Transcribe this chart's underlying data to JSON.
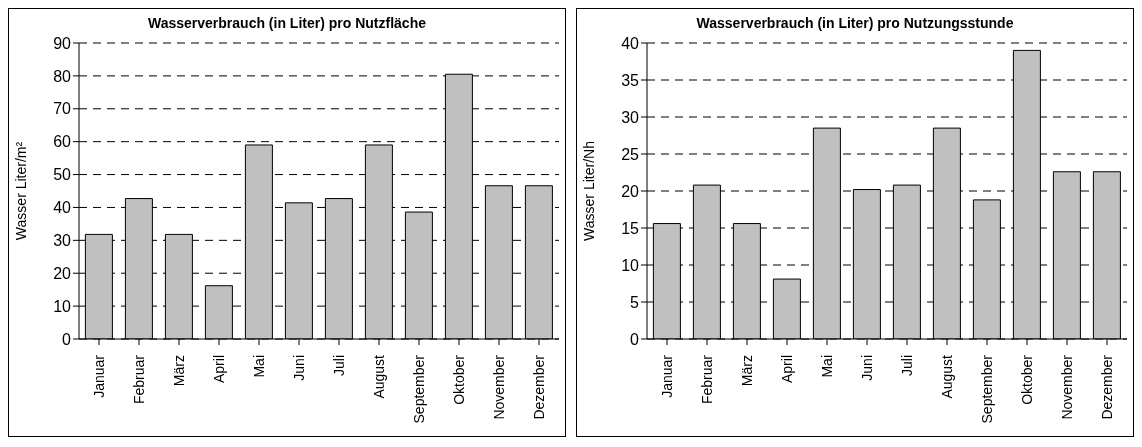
{
  "chart_data": [
    {
      "type": "bar",
      "title": "Wasserverbrauch (in Liter) pro Nutzfläche",
      "ylabel": "Wasser Liter/m²",
      "categories": [
        "Januar",
        "Februar",
        "März",
        "April",
        "Mai",
        "Juni",
        "Juli",
        "August",
        "September",
        "Oktober",
        "November",
        "Dezember"
      ],
      "values": [
        31.8,
        42.7,
        31.8,
        16.2,
        59,
        41.4,
        42.7,
        59,
        38.6,
        80.5,
        46.6,
        46.6
      ],
      "color": "#c0c0c0",
      "ylim": [
        0,
        90
      ],
      "yticks": [
        0,
        10,
        20,
        30,
        40,
        50,
        60,
        70,
        80,
        90
      ],
      "grid": "y",
      "legend": false
    },
    {
      "type": "bar",
      "title": "Wasserverbrauch (in Liter) pro Nutzungsstunde",
      "ylabel": "Wasser Liter/Nh",
      "categories": [
        "Januar",
        "Februar",
        "März",
        "April",
        "Mai",
        "Juni",
        "Juli",
        "August",
        "September",
        "Oktober",
        "November",
        "Dezember"
      ],
      "values": [
        15.6,
        20.8,
        15.6,
        8.1,
        28.5,
        20.2,
        20.8,
        28.5,
        18.8,
        39,
        22.6,
        22.6
      ],
      "color": "#c0c0c0",
      "ylim": [
        0,
        40
      ],
      "yticks": [
        0,
        5,
        10,
        15,
        20,
        25,
        30,
        35,
        40
      ],
      "grid": "y",
      "legend": false
    }
  ]
}
